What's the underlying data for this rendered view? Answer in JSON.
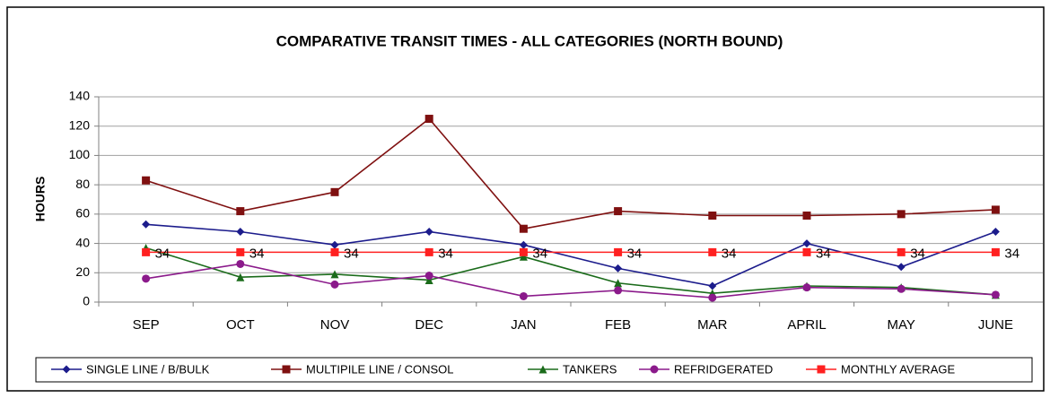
{
  "chart_data": {
    "type": "line",
    "title": "COMPARATIVE TRANSIT TIMES - ALL CATEGORIES (NORTH BOUND)",
    "y_label": "HOURS",
    "categories": [
      "SEP",
      "OCT",
      "NOV",
      "DEC",
      "JAN",
      "FEB",
      "MAR",
      "APRIL",
      "MAY",
      "JUNE"
    ],
    "series": [
      {
        "name": "SINGLE LINE / B/BULK",
        "color": "#1c1c8c",
        "marker": "diamond",
        "values": [
          53,
          48,
          39,
          48,
          39,
          23,
          11,
          40,
          24,
          48
        ]
      },
      {
        "name": "MULTIPILE LINE / CONSOL",
        "color": "#7f1010",
        "marker": "square",
        "values": [
          83,
          62,
          75,
          125,
          50,
          62,
          59,
          59,
          60,
          63
        ]
      },
      {
        "name": "TANKERS",
        "color": "#1a6b1a",
        "marker": "triangle",
        "values": [
          37,
          17,
          19,
          15,
          31,
          13,
          6,
          11,
          10,
          5
        ]
      },
      {
        "name": "REFRIDGERATED",
        "color": "#8b1a8b",
        "marker": "circle",
        "values": [
          16,
          26,
          12,
          18,
          4,
          8,
          3,
          10,
          9,
          5
        ]
      },
      {
        "name": "MONTHLY AVERAGE",
        "color": "#ff2020",
        "marker": "square",
        "data_labels": true,
        "values": [
          34,
          34,
          34,
          34,
          34,
          34,
          34,
          34,
          34,
          34
        ]
      }
    ],
    "ylim": [
      0,
      140
    ],
    "yticks": [
      0,
      20,
      40,
      60,
      80,
      100,
      120,
      140
    ],
    "grid": true,
    "legend": "bottom"
  }
}
